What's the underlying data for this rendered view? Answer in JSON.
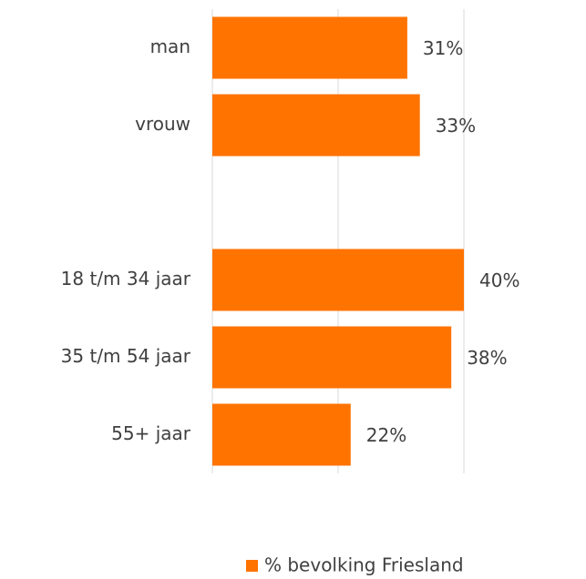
{
  "chart_data": {
    "type": "bar",
    "orientation": "horizontal",
    "categories": [
      "man",
      "vrouw",
      null,
      "18 t/m 34 jaar",
      "35 t/m 54 jaar",
      "55+ jaar"
    ],
    "series": [
      {
        "name": "% bevolking Friesland",
        "color": "#ff7300",
        "values": [
          31,
          33,
          null,
          40,
          38,
          22
        ],
        "value_labels": [
          "31%",
          "33%",
          null,
          "40%",
          "38%",
          "22%"
        ]
      }
    ],
    "xlim": [
      0,
      40
    ],
    "xticks": [
      0,
      20,
      40
    ],
    "grid": true,
    "legend": "bottom"
  }
}
